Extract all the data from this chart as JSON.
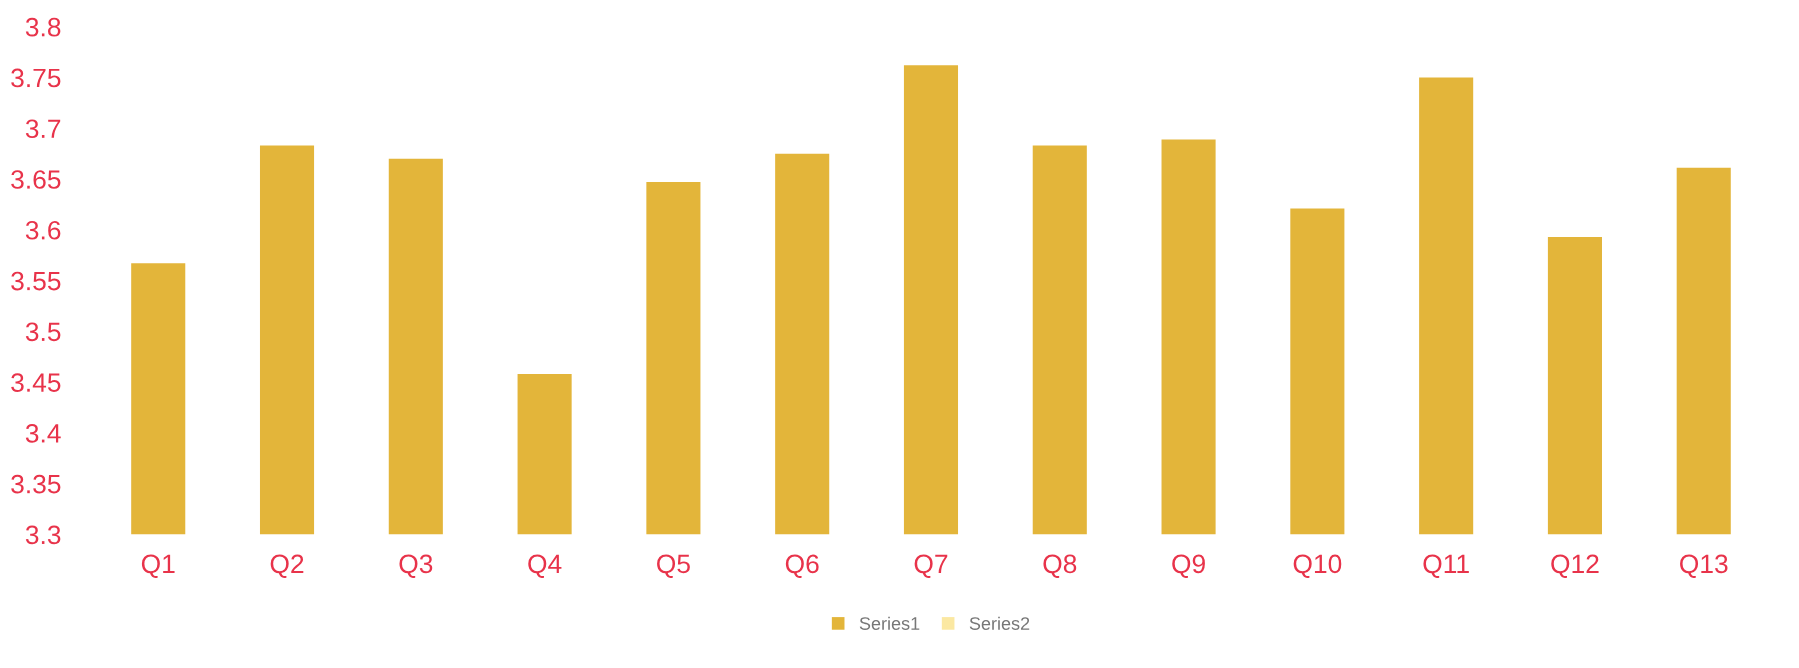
{
  "chart_data": {
    "type": "bar",
    "categories": [
      "Q1",
      "Q2",
      "Q3",
      "Q4",
      "Q5",
      "Q6",
      "Q7",
      "Q8",
      "Q9",
      "Q10",
      "Q11",
      "Q12",
      "Q13"
    ],
    "series": [
      {
        "name": "Series1",
        "color": "#e3b53a",
        "values": [
          3.567,
          3.683,
          3.67,
          3.458,
          3.647,
          3.675,
          3.762,
          3.683,
          3.689,
          3.621,
          3.75,
          3.593,
          3.661
        ]
      },
      {
        "name": "Series2",
        "color": "#fbe8a2",
        "values": [
          null,
          null,
          null,
          null,
          null,
          null,
          null,
          null,
          null,
          null,
          null,
          null,
          null
        ]
      }
    ],
    "ylim": [
      3.3,
      3.8
    ],
    "yticks": [
      {
        "value": 3.3,
        "label": "3.3"
      },
      {
        "value": 3.35,
        "label": "3.35"
      },
      {
        "value": 3.4,
        "label": "3.4"
      },
      {
        "value": 3.45,
        "label": "3.45"
      },
      {
        "value": 3.5,
        "label": "3.5"
      },
      {
        "value": 3.55,
        "label": "3.55"
      },
      {
        "value": 3.6,
        "label": "3.6"
      },
      {
        "value": 3.65,
        "label": "3.65"
      },
      {
        "value": 3.7,
        "label": "3.7"
      },
      {
        "value": 3.75,
        "label": "3.75"
      },
      {
        "value": 3.8,
        "label": "3.8"
      }
    ],
    "grid": false,
    "legend": "bottom"
  }
}
